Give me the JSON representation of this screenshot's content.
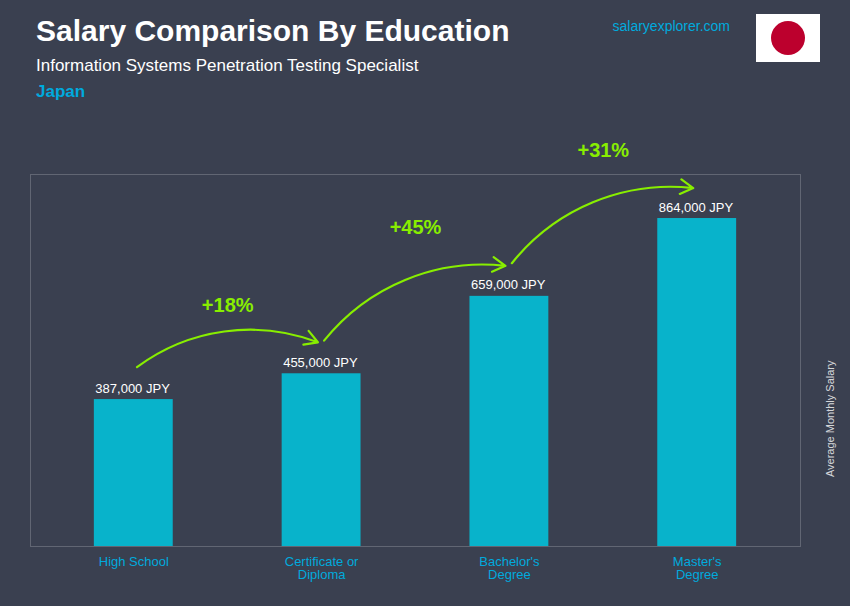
{
  "chart_data": {
    "type": "bar",
    "title": "Salary Comparison By Education",
    "subtitle": "Information Systems Penetration Testing Specialist",
    "ylabel": "Average Monthly Salary",
    "categories": [
      "High School",
      "Certificate or\nDiploma",
      "Bachelor's\nDegree",
      "Master's\nDegree"
    ],
    "values": [
      387000,
      455000,
      659000,
      864000
    ],
    "value_labels": [
      "387,000 JPY",
      "455,000 JPY",
      "659,000 JPY",
      "864,000 JPY"
    ],
    "data_labels": true,
    "color": "#00c8e0",
    "ylim": [
      0,
      980000
    ],
    "yticks": [],
    "tick_labels": "x",
    "grid": false,
    "annotations": [
      {
        "text": "Japan",
        "color": "#00aadd"
      },
      {
        "text": "salaryexplorer.com",
        "color": "#00aadd"
      },
      {
        "text": "+18%",
        "from": "High School",
        "to": "Certificate or\nDiploma",
        "color": "#88ee00"
      },
      {
        "text": "+45%",
        "from": "Certificate or\nDiploma",
        "to": "Bachelor's\nDegree",
        "color": "#88ee00"
      },
      {
        "text": "+31%",
        "from": "Bachelor's\nDegree",
        "to": "Master's\nDegree",
        "color": "#88ee00"
      }
    ]
  }
}
